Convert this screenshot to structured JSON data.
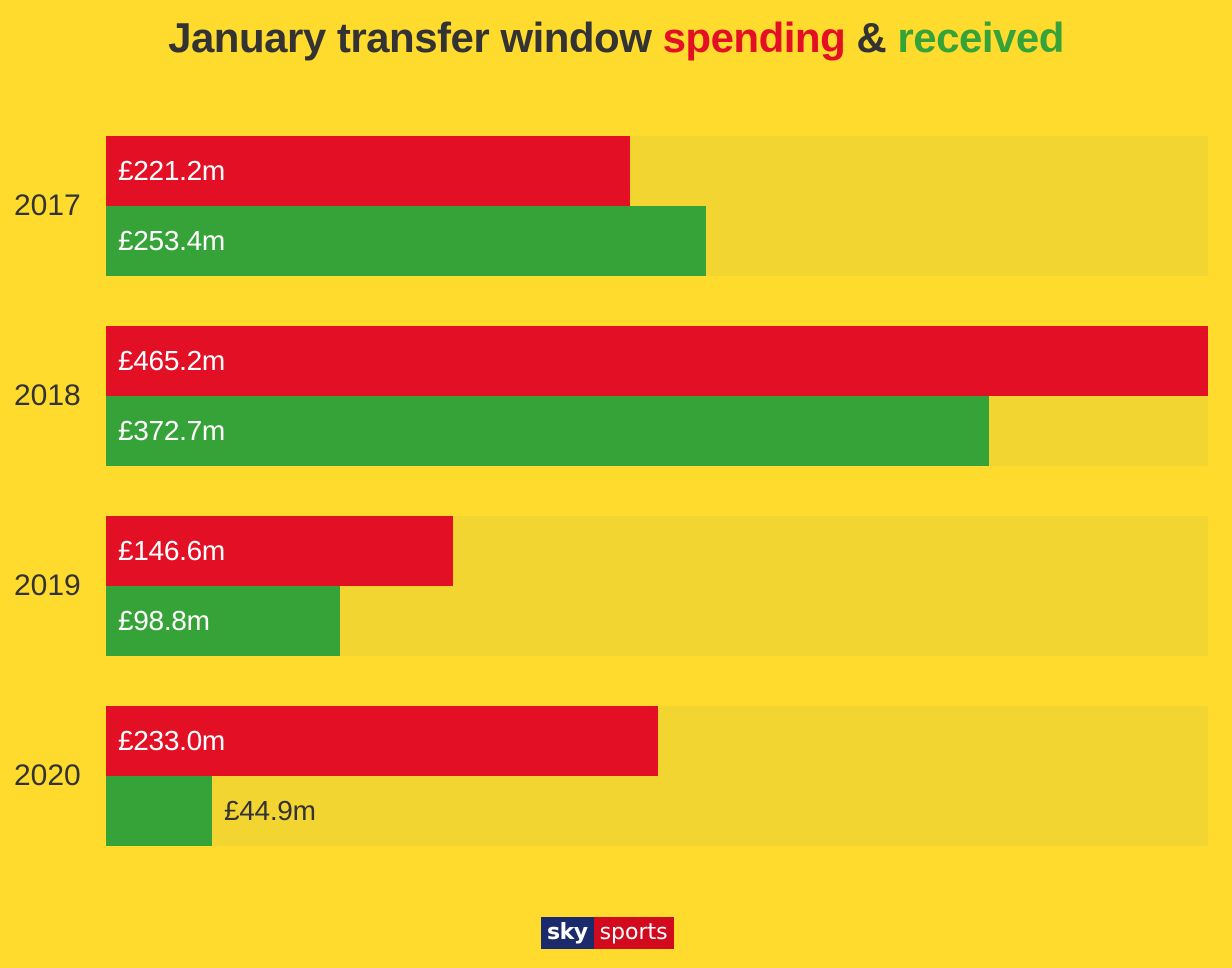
{
  "title": {
    "prefix": "January transfer window",
    "spending": "spending",
    "amp": "&",
    "received": "received"
  },
  "logo": {
    "sky": "sky",
    "sports": "sports"
  },
  "colors": {
    "background": "#FFDB2E",
    "track": "#F2D531",
    "spending": "#E30F24",
    "received": "#36A338",
    "text": "#333333"
  },
  "chart_data": {
    "type": "bar",
    "orientation": "horizontal",
    "categories": [
      "2017",
      "2018",
      "2019",
      "2020"
    ],
    "xlim": [
      0,
      465.2
    ],
    "series": [
      {
        "name": "spending",
        "values": [
          221.2,
          465.2,
          146.6,
          233.0
        ],
        "labels": [
          "£221.2m",
          "£465.2m",
          "£146.6m",
          "£233.0m"
        ]
      },
      {
        "name": "received",
        "values": [
          253.4,
          372.7,
          98.8,
          44.9
        ],
        "labels": [
          "£253.4m",
          "£372.7m",
          "£98.8m",
          "£44.9m"
        ]
      }
    ],
    "grid": false,
    "legend": "title"
  }
}
